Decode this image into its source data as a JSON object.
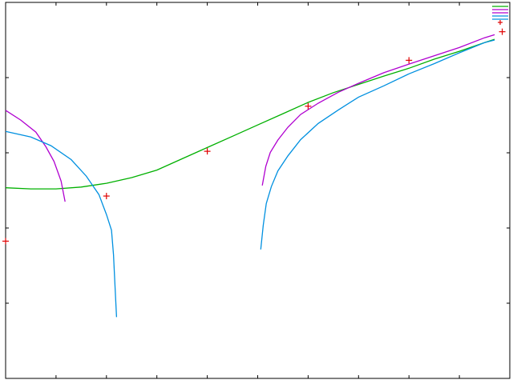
{
  "chart_data": {
    "type": "line",
    "title": "",
    "xlabel": "",
    "ylabel": "",
    "grid": false,
    "legend_position": "top-right",
    "xlim": [
      0,
      100
    ],
    "ylim": [
      0,
      100
    ],
    "x_tick_values": [
      0,
      10,
      20,
      30,
      40,
      50,
      60,
      70,
      80,
      90,
      100
    ],
    "y_tick_values": [
      0,
      20,
      40,
      60,
      80,
      100
    ],
    "series": [
      {
        "kind": "line",
        "color": "#00b000",
        "points": [
          [
            0,
            50.7
          ],
          [
            5,
            50.4
          ],
          [
            10,
            50.4
          ],
          [
            15,
            50.9
          ],
          [
            20,
            51.9
          ],
          [
            25,
            53.4
          ],
          [
            30,
            55.4
          ],
          [
            35,
            58.4
          ],
          [
            40,
            61.4
          ],
          [
            45,
            64.4
          ],
          [
            50,
            67.4
          ],
          [
            55,
            70.4
          ],
          [
            60,
            73.4
          ],
          [
            65,
            76.0
          ],
          [
            70,
            78.2
          ],
          [
            75,
            80.4
          ],
          [
            80,
            82.5
          ],
          [
            85,
            84.9
          ],
          [
            90,
            87.0
          ],
          [
            95,
            89.3
          ],
          [
            97,
            90.2
          ]
        ]
      },
      {
        "kind": "line",
        "color": "#b000d0",
        "points": [
          [
            0,
            71.3
          ],
          [
            3,
            68.7
          ],
          [
            6,
            65.5
          ],
          [
            8,
            61.6
          ],
          [
            9.6,
            57.7
          ],
          [
            11,
            52.5
          ],
          [
            11.8,
            47.0
          ]
        ]
      },
      {
        "kind": "line",
        "color": "#b000d0",
        "points": [
          [
            50.9,
            51.3
          ],
          [
            51.6,
            56.4
          ],
          [
            52.5,
            60.1
          ],
          [
            54,
            63.4
          ],
          [
            56,
            66.8
          ],
          [
            58.5,
            70.2
          ],
          [
            62,
            73.2
          ],
          [
            66,
            76.1
          ],
          [
            70,
            78.5
          ],
          [
            75,
            81.3
          ],
          [
            80,
            83.6
          ],
          [
            85,
            85.8
          ],
          [
            90,
            88.0
          ],
          [
            95,
            90.6
          ],
          [
            97,
            91.4
          ]
        ]
      },
      {
        "kind": "line",
        "color": "#0090e0",
        "points": [
          [
            0,
            65.7
          ],
          [
            5,
            64.2
          ],
          [
            9,
            61.9
          ],
          [
            13,
            58.2
          ],
          [
            16,
            53.8
          ],
          [
            18.5,
            48.9
          ],
          [
            20,
            43.6
          ],
          [
            21,
            39.4
          ],
          [
            21.4,
            32.9
          ],
          [
            21.7,
            24.5
          ],
          [
            22,
            16.3
          ]
        ]
      },
      {
        "kind": "line",
        "color": "#0090e0",
        "points": [
          [
            50.6,
            34.3
          ],
          [
            51.1,
            40.7
          ],
          [
            51.7,
            46.5
          ],
          [
            52.7,
            51.0
          ],
          [
            54,
            55.2
          ],
          [
            56,
            59.2
          ],
          [
            58.5,
            63.5
          ],
          [
            62,
            67.8
          ],
          [
            66,
            71.4
          ],
          [
            70,
            74.8
          ],
          [
            75,
            77.8
          ],
          [
            80,
            81.0
          ],
          [
            85,
            83.7
          ],
          [
            90,
            86.6
          ],
          [
            95,
            89.3
          ],
          [
            97,
            90.0
          ]
        ]
      },
      {
        "kind": "points",
        "color": "#e00000",
        "points": [
          [
            0,
            36.5
          ],
          [
            20,
            48.5
          ],
          [
            40,
            60.4
          ],
          [
            60,
            72.4
          ],
          [
            80,
            84.6
          ],
          [
            98.5,
            92.2
          ]
        ]
      }
    ]
  }
}
